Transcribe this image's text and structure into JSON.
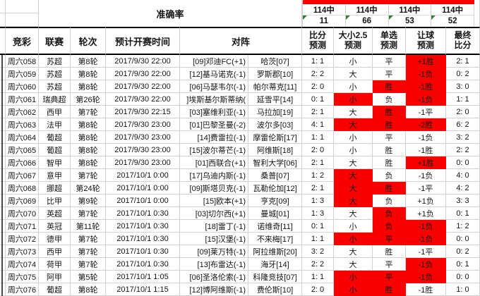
{
  "colors": {
    "hit_red": "#fa0000",
    "marker_green": "#2f7d32"
  },
  "accuracy": {
    "title": "准确率",
    "stats": [
      {
        "label": "114中",
        "value": "11"
      },
      {
        "label": "114中",
        "value": "66"
      },
      {
        "label": "114中",
        "value": "53"
      },
      {
        "label": "114中",
        "value": "52"
      }
    ]
  },
  "header": {
    "match": "竞彩",
    "league": "联赛",
    "round": "轮次",
    "time": "预计开赛时间",
    "matchup": "对阵",
    "score": "比分\n预测",
    "ou": "大小2.5\n预测",
    "pick": "单选\n预测",
    "handicap": "让球\n预测",
    "final": "最终\n比分"
  },
  "rows": [
    {
      "id": "周六058",
      "league": "苏超",
      "round": "第8轮",
      "time": "2017/9/30 22:00",
      "home": "[09]邓迪FC(+1)",
      "away": "哈茨[07]",
      "score": "1: 1",
      "ou": "小",
      "pick": "平",
      "handicap": "+1胜",
      "final": "2: 1",
      "hits": [
        "handicap"
      ]
    },
    {
      "id": "周六059",
      "league": "苏超",
      "round": "第8轮",
      "time": "2017/9/30 22:00",
      "home": "[12]基马诺克(-1)",
      "away": "罗斯郡[10]",
      "score": "2: 2",
      "ou": "大",
      "pick": "平",
      "handicap": "-1负",
      "final": "0: 2",
      "hits": [
        "handicap"
      ]
    },
    {
      "id": "周六060",
      "league": "苏超",
      "round": "第8轮",
      "time": "2017/9/30 22:00",
      "home": "[06]马瑟韦尔(-1)",
      "away": "帕尔蒂克[11]",
      "score": "2: 0",
      "ou": "小",
      "pick": "胜",
      "handicap": "-1胜",
      "final": "3: 0",
      "hits": [
        "pick",
        "handicap"
      ]
    },
    {
      "id": "周六061",
      "league": "瑞典超",
      "round": "第26轮",
      "time": "2017/9/30 22:00",
      "home": "]埃斯基尔斯蒂纳(",
      "away": "延雪平[14]",
      "score": "0: 1",
      "ou": "小",
      "pick": "负",
      "handicap": "-1负",
      "final": "1: 1",
      "hits": [
        "ou",
        "handicap"
      ]
    },
    {
      "id": "周六062",
      "league": "西甲",
      "round": "第7轮",
      "time": "2017/9/30 22:15",
      "home": "[03]塞维利亚(-1)",
      "away": "马拉加[19]",
      "score": "2: 1",
      "ou": "大",
      "pick": "胜",
      "handicap": "-1平",
      "final": "2: 0",
      "hits": [
        "pick"
      ]
    },
    {
      "id": "周六063",
      "league": "法甲",
      "round": "第8轮",
      "time": "2017/9/30 23:00",
      "home": "[01]巴黎圣曼(-2)",
      "away": "波尔多[03]",
      "score": "4: 1",
      "ou": "大",
      "pick": "胜",
      "handicap": "-2胜",
      "final": "6: 2",
      "hits": [
        "ou",
        "pick",
        "handicap"
      ]
    },
    {
      "id": "周六064",
      "league": "葡超",
      "round": "第8轮",
      "time": "2017/9/30 23:00",
      "home": "[14]费雷拉(-1)",
      "away": "摩雷伦斯[17]",
      "score": "1: 1",
      "ou": "小",
      "pick": "平",
      "handicap": "-1负",
      "final": "3: 2",
      "hits": []
    },
    {
      "id": "周六065",
      "league": "葡超",
      "round": "第8轮",
      "time": "2017/9/30 23:00",
      "home": "[15]波尔蒂芒(-1)",
      "away": "阿维斯[18]",
      "score": "2: 0",
      "ou": "小",
      "pick": "胜",
      "handicap": "-1胜",
      "final": "2: 2",
      "hits": []
    },
    {
      "id": "周六066",
      "league": "智甲",
      "round": "第8轮",
      "time": "2017/9/30 23:00",
      "home": "[01]西联合(+1)",
      "away": "智利大学[06]",
      "score": "2: 1",
      "ou": "大",
      "pick": "胜",
      "handicap": "+1胜",
      "final": "0: 0",
      "hits": [
        "handicap"
      ]
    },
    {
      "id": "周六067",
      "league": "意甲",
      "round": "第7轮",
      "time": "2017/10/1 0:00",
      "home": "[17]乌迪内斯(-1)",
      "away": "桑普[07]",
      "score": "1: 2",
      "ou": "大",
      "pick": "负",
      "handicap": "-1负",
      "final": "4: 0",
      "hits": [
        "ou"
      ]
    },
    {
      "id": "周六068",
      "league": "挪超",
      "round": "第24轮",
      "time": "2017/10/1 0:00",
      "home": "[09]斯塔贝克(-1)",
      "away": "瓦勒伦加[12]",
      "score": "2: 1",
      "ou": "大",
      "pick": "胜",
      "handicap": "-1平",
      "final": "4: 2",
      "hits": [
        "ou",
        "pick"
      ]
    },
    {
      "id": "周六069",
      "league": "比甲",
      "round": "第9轮",
      "time": "2017/10/1 0:00",
      "home": "[15]欧本(+1)",
      "away": "亨克[09]",
      "score": "1: 3",
      "ou": "大",
      "pick": "负",
      "handicap": "+1负",
      "final": "3: 3",
      "hits": [
        "ou"
      ]
    },
    {
      "id": "周六070",
      "league": "英超",
      "round": "第7轮",
      "time": "2017/10/1 0:30",
      "home": "[03]切尔西(+1)",
      "away": "曼城[01]",
      "score": "1: 3",
      "ou": "大",
      "pick": "负",
      "handicap": "+1负",
      "final": "0: 1",
      "hits": [
        "pick"
      ]
    },
    {
      "id": "周六071",
      "league": "英冠",
      "round": "第11轮",
      "time": "2017/10/1 0:30",
      "home": "[18]雷丁(-1)",
      "away": "诺维奇[11]",
      "score": "0: 1",
      "ou": "小",
      "pick": "负",
      "handicap": "-1负",
      "final": "1: 2",
      "hits": [
        "pick",
        "handicap"
      ]
    },
    {
      "id": "周六072",
      "league": "德甲",
      "round": "第7轮",
      "time": "2017/10/1 0:30",
      "home": "[15]汉堡(-1)",
      "away": "不来梅[17]",
      "score": "1: 1",
      "ou": "小",
      "pick": "平",
      "handicap": "-1负",
      "final": "0: 0",
      "hits": [
        "ou",
        "pick",
        "handicap"
      ]
    },
    {
      "id": "周六073",
      "league": "西甲",
      "round": "第7轮",
      "time": "2017/10/1 0:30",
      "home": "[09]莱万特(-1)",
      "away": "阿拉维斯[20]",
      "score": "3: 2",
      "ou": "大",
      "pick": "胜",
      "handicap": "-1平",
      "final": "0: 2",
      "hits": []
    },
    {
      "id": "周六074",
      "league": "荷甲",
      "round": "第7轮",
      "time": "2017/10/1 0:30",
      "home": "[13]布雷达(-1)",
      "away": "海牙[14]",
      "score": "2: 2",
      "ou": "大",
      "pick": "平",
      "handicap": "-1负",
      "final": "0: 1",
      "hits": [
        "handicap"
      ]
    },
    {
      "id": "周六075",
      "league": "阿甲",
      "round": "第5轮",
      "time": "2017/10/1 1:05",
      "home": "[06]圣洛伦索(-1)",
      "away": "科隆竞技[07]",
      "score": "1: 1",
      "ou": "小",
      "pick": "平",
      "handicap": "-1负",
      "final": "0: 0",
      "hits": [
        "ou",
        "pick",
        "handicap"
      ]
    },
    {
      "id": "周六076",
      "league": "葡超",
      "round": "第8轮",
      "time": "2017/10/1 1:15",
      "home": "[12]博阿维斯(-1)",
      "away": "费伦斯[10]",
      "score": "2: 0",
      "ou": "小",
      "pick": "胜",
      "handicap": "-1胜",
      "final": "1: 0",
      "hits": [
        "ou",
        "pick"
      ]
    }
  ]
}
